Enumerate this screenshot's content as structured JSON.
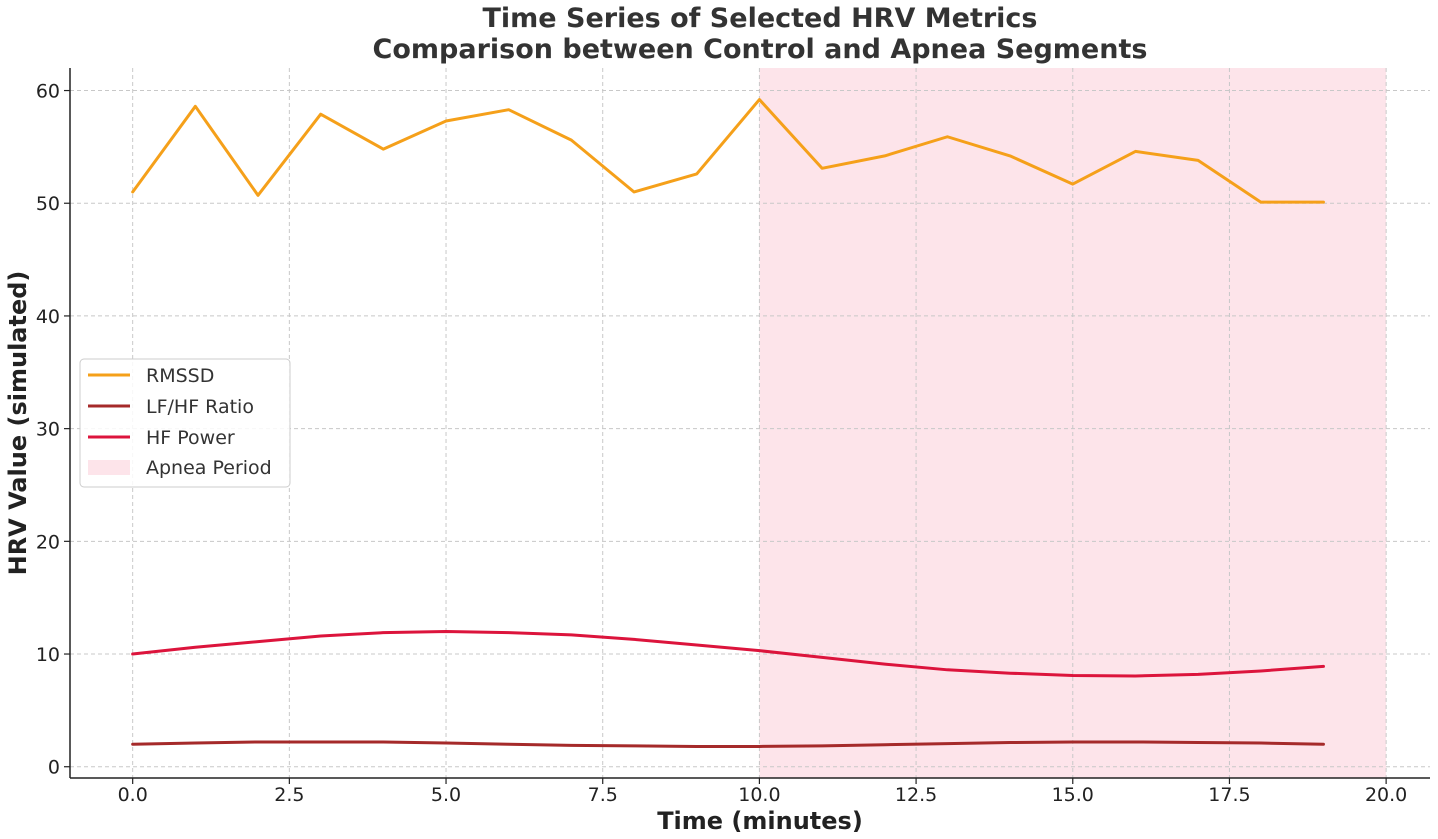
{
  "chart_data": {
    "type": "line",
    "title": "Time Series of Selected HRV Metrics",
    "subtitle": "Comparison between Control and Apnea Segments",
    "xlabel": "Time (minutes)",
    "ylabel": "HRV Value (simulated)",
    "xlim": [
      -1.0,
      20.7
    ],
    "ylim": [
      -1,
      62
    ],
    "xticks": [
      0.0,
      2.5,
      5.0,
      7.5,
      10.0,
      12.5,
      15.0,
      17.5,
      20.0
    ],
    "xtick_labels": [
      "0.0",
      "2.5",
      "5.0",
      "7.5",
      "10.0",
      "12.5",
      "15.0",
      "17.5",
      "20.0"
    ],
    "yticks": [
      0,
      10,
      20,
      30,
      40,
      50,
      60
    ],
    "ytick_labels": [
      "0",
      "10",
      "20",
      "30",
      "40",
      "50",
      "60"
    ],
    "grid": true,
    "legend_position": "center-left",
    "x": [
      0,
      1,
      2,
      3,
      4,
      5,
      6,
      7,
      8,
      9,
      10,
      11,
      12,
      13,
      14,
      15,
      16,
      17,
      18,
      19
    ],
    "series": [
      {
        "name": "RMSSD",
        "color": "#f5a01a",
        "values": [
          51.0,
          58.6,
          50.7,
          57.9,
          54.8,
          57.3,
          58.3,
          55.6,
          51.0,
          52.6,
          59.2,
          53.1,
          54.2,
          55.9,
          54.2,
          51.7,
          54.6,
          53.8,
          50.1,
          50.1
        ]
      },
      {
        "name": "LF/HF Ratio",
        "color": "#a52a2a",
        "values": [
          2.0,
          2.1,
          2.2,
          2.2,
          2.2,
          2.1,
          2.0,
          1.9,
          1.85,
          1.8,
          1.8,
          1.85,
          1.95,
          2.05,
          2.15,
          2.2,
          2.2,
          2.15,
          2.1,
          2.0
        ]
      },
      {
        "name": "HF Power",
        "color": "#dc143c",
        "values": [
          10.0,
          10.6,
          11.1,
          11.6,
          11.9,
          12.0,
          11.9,
          11.7,
          11.3,
          10.8,
          10.3,
          9.7,
          9.1,
          8.6,
          8.3,
          8.1,
          8.05,
          8.2,
          8.5,
          8.9
        ]
      }
    ],
    "shaded_regions": [
      {
        "name": "Apnea Period",
        "x_start": 10,
        "x_end": 20,
        "color": "#fde4ea"
      }
    ]
  }
}
